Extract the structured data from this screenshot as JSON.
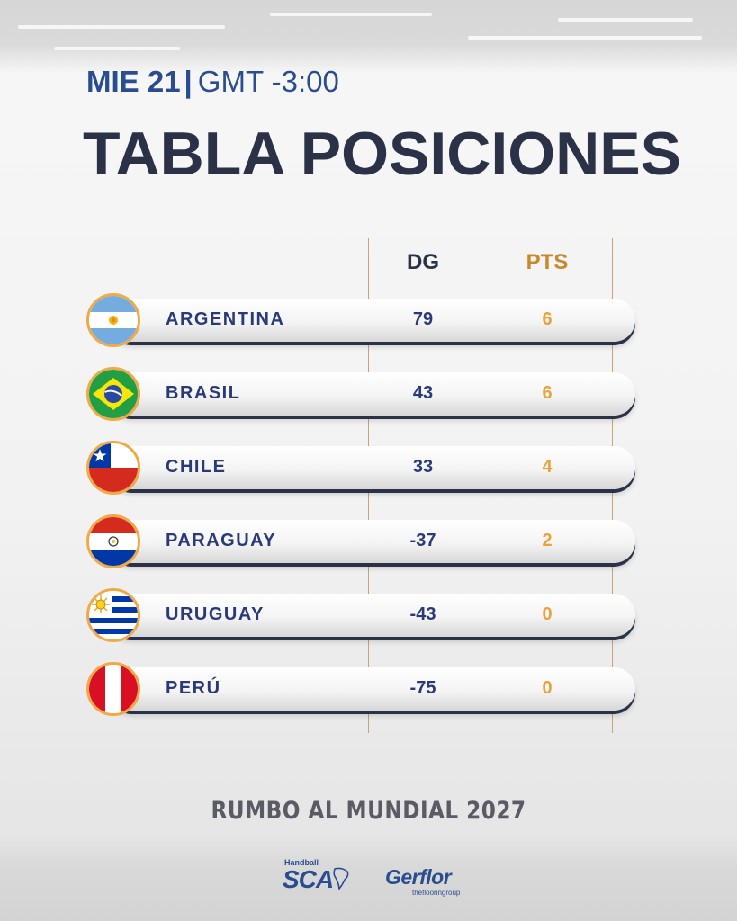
{
  "header": {
    "day": "MIE 21",
    "separator": "|",
    "timezone": "GMT -3:00",
    "title": "TABLA POSICIONES"
  },
  "table": {
    "columns": {
      "dg": "DG",
      "pts": "PTS"
    },
    "rows": [
      {
        "flag": "argentina-flag",
        "team": "ARGENTINA",
        "dg": "79",
        "pts": "6"
      },
      {
        "flag": "brazil-flag",
        "team": "BRASIL",
        "dg": "43",
        "pts": "6"
      },
      {
        "flag": "chile-flag",
        "team": "CHILE",
        "dg": "33",
        "pts": "4"
      },
      {
        "flag": "paraguay-flag",
        "team": "PARAGUAY",
        "dg": "-37",
        "pts": "2"
      },
      {
        "flag": "uruguay-flag",
        "team": "URUGUAY",
        "dg": "-43",
        "pts": "0"
      },
      {
        "flag": "peru-flag",
        "team": "PERÚ",
        "dg": "-75",
        "pts": "0"
      }
    ]
  },
  "footer": {
    "tagline": "RUMBO AL MUNDIAL 2027",
    "logo_sca_small": "Handball",
    "logo_sca": "SCA",
    "logo_gerflor": "Gerflor",
    "logo_gerflor_tag": "theflooringroup"
  },
  "colors": {
    "navy": "#2b3147",
    "blue": "#2a4d8f",
    "gold": "#e8a33c",
    "flag_ring": "#f0a945"
  }
}
